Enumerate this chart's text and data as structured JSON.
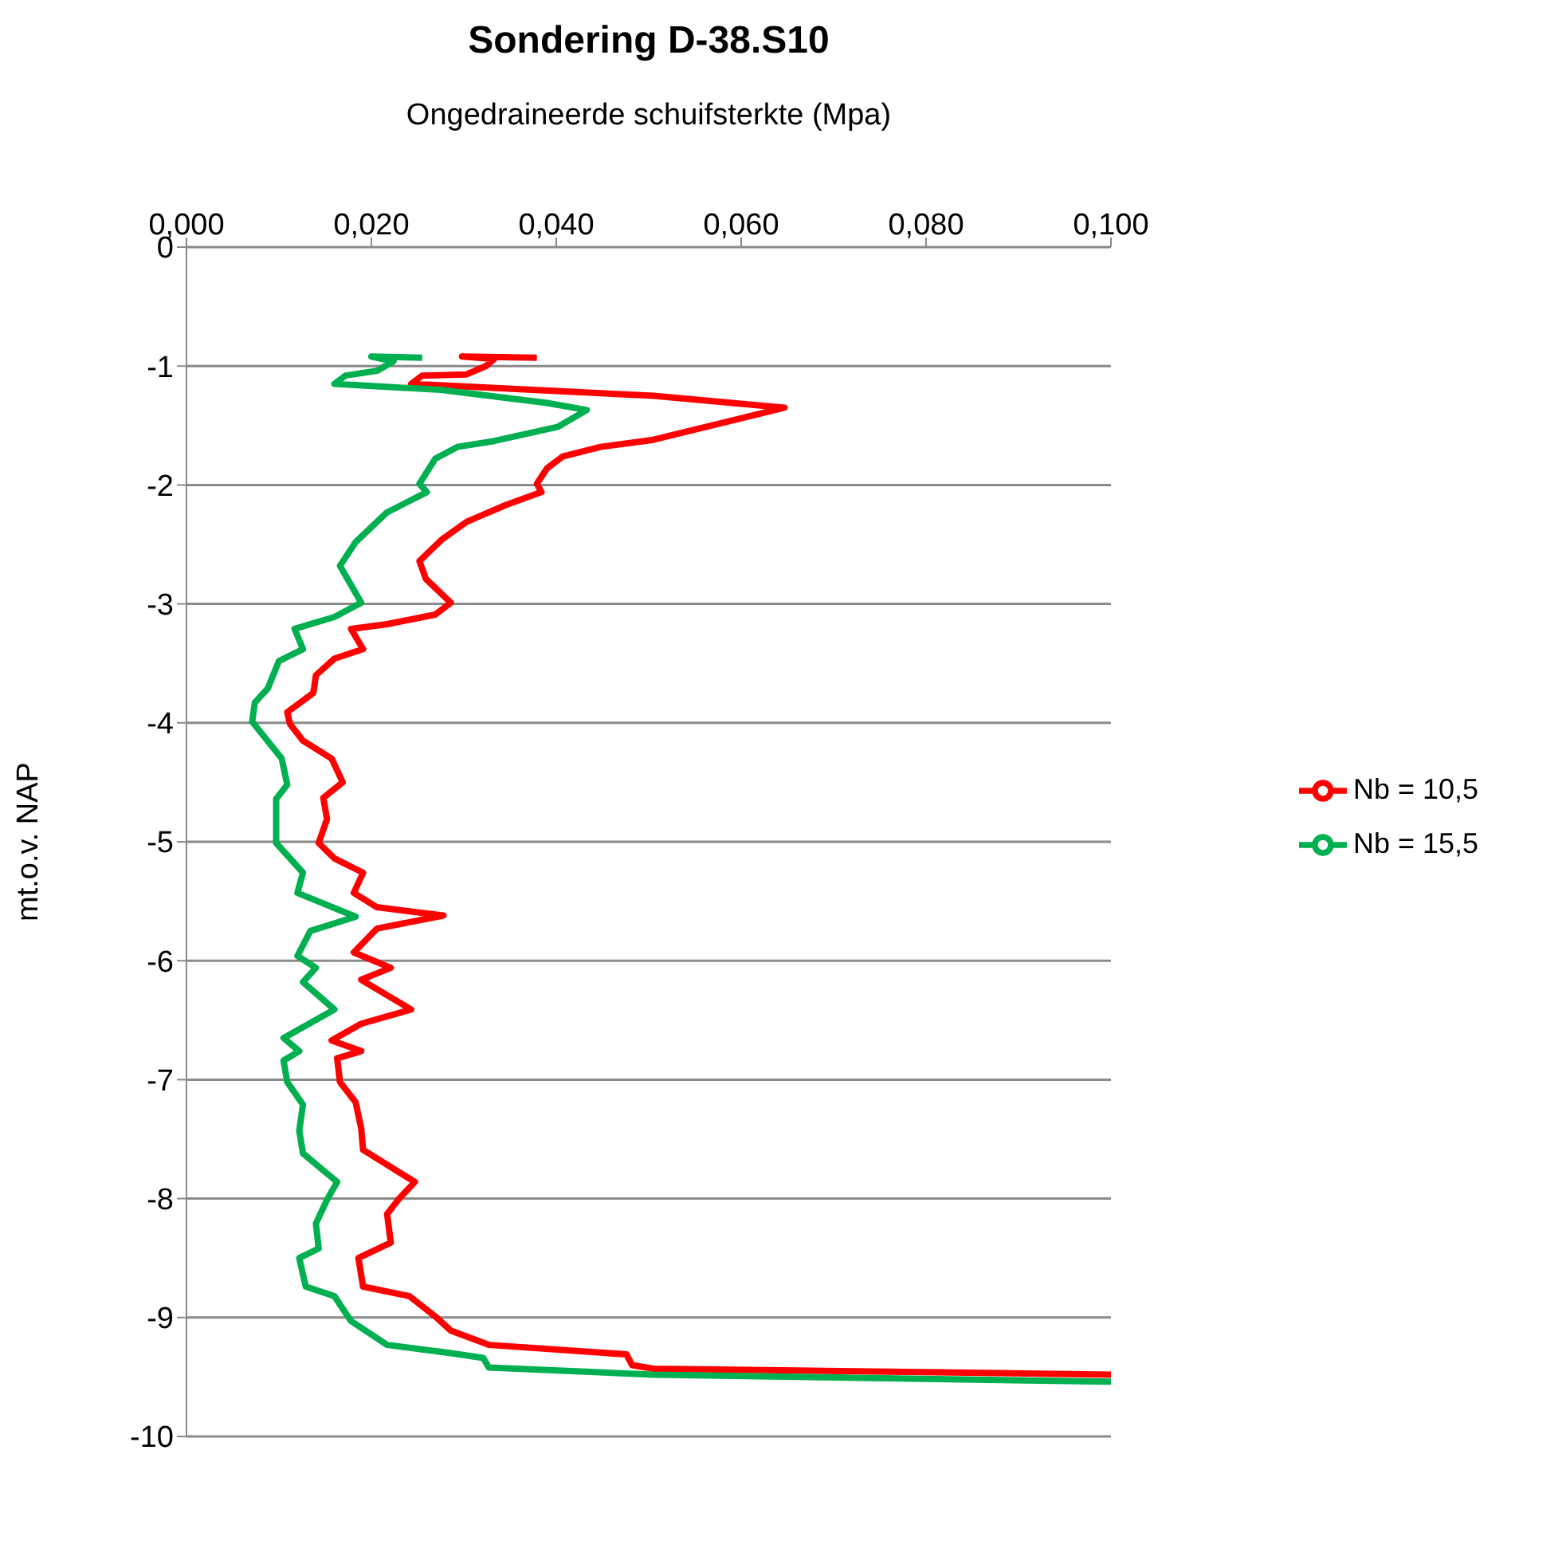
{
  "chart_data": {
    "type": "line",
    "title": "Sondering D-38.S10",
    "xlabel": "Ongedraineerde schuifsterkte (Mpa)",
    "ylabel": "mt.o.v. NAP",
    "xlim": [
      0,
      0.1
    ],
    "xticks": [
      {
        "value": 0,
        "label": "0,000"
      },
      {
        "value": 0.02,
        "label": "0,020"
      },
      {
        "value": 0.04,
        "label": "0,040"
      },
      {
        "value": 0.06,
        "label": "0,060"
      },
      {
        "value": 0.08,
        "label": "0,080"
      },
      {
        "value": 0.1,
        "label": "0,100"
      }
    ],
    "ylim": [
      -10,
      0
    ],
    "yticks": [
      0,
      -1,
      -2,
      -3,
      -4,
      -5,
      -6,
      -7,
      -8,
      -9,
      -10
    ],
    "grid": "y",
    "legend": "right",
    "marker": "none",
    "line_style": "solid",
    "series": [
      {
        "name": "Nb = 10,5",
        "color": "#ff0000",
        "x": [
          0.0379,
          0.0298,
          0.0333,
          0.0324,
          0.0303,
          0.0255,
          0.0243,
          0.0505,
          0.0647,
          0.0505,
          0.0448,
          0.0407,
          0.039,
          0.0379,
          0.0384,
          0.0345,
          0.0303,
          0.0276,
          0.0252,
          0.0259,
          0.0286,
          0.0269,
          0.0217,
          0.0178,
          0.0191,
          0.016,
          0.014,
          0.0138,
          0.0137,
          0.0109,
          0.0112,
          0.0126,
          0.0157,
          0.0169,
          0.0148,
          0.0152,
          0.0143,
          0.016,
          0.0191,
          0.0181,
          0.0206,
          0.0278,
          0.0206,
          0.0181,
          0.0221,
          0.0189,
          0.0243,
          0.0189,
          0.0157,
          0.0189,
          0.0163,
          0.0166,
          0.0183,
          0.0189,
          0.0191,
          0.0247,
          0.0229,
          0.0217,
          0.0221,
          0.0186,
          0.0191,
          0.0241,
          0.0269,
          0.0286,
          0.0327,
          0.0476,
          0.0482,
          0.0505,
          0.1
        ],
        "values": [
          -0.93,
          -0.92,
          -0.94,
          -1.0,
          -1.07,
          -1.08,
          -1.15,
          -1.25,
          -1.35,
          -1.62,
          -1.68,
          -1.76,
          -1.86,
          -1.99,
          -2.06,
          -2.17,
          -2.31,
          -2.46,
          -2.64,
          -2.79,
          -2.99,
          -3.09,
          -3.17,
          -3.21,
          -3.38,
          -3.46,
          -3.6,
          -3.71,
          -3.75,
          -3.91,
          -4.01,
          -4.15,
          -4.3,
          -4.5,
          -4.63,
          -4.81,
          -5.01,
          -5.14,
          -5.26,
          -5.43,
          -5.55,
          -5.62,
          -5.73,
          -5.93,
          -6.06,
          -6.16,
          -6.41,
          -6.53,
          -6.67,
          -6.76,
          -6.82,
          -7.02,
          -7.19,
          -7.41,
          -7.59,
          -7.86,
          -8.01,
          -8.13,
          -8.37,
          -8.5,
          -8.74,
          -8.82,
          -8.99,
          -9.11,
          -9.23,
          -9.31,
          -9.4,
          -9.43,
          -9.48
        ]
      },
      {
        "name": "Nb = 15,5",
        "color": "#00b050",
        "x": [
          0.0255,
          0.02,
          0.0224,
          0.0206,
          0.0172,
          0.016,
          0.0275,
          0.039,
          0.0433,
          0.0402,
          0.0333,
          0.0293,
          0.0269,
          0.0252,
          0.026,
          0.0217,
          0.0183,
          0.0166,
          0.0189,
          0.016,
          0.0117,
          0.0126,
          0.01,
          0.0088,
          0.0074,
          0.0071,
          0.0103,
          0.0109,
          0.0097,
          0.0097,
          0.0126,
          0.012,
          0.0183,
          0.0134,
          0.012,
          0.014,
          0.0126,
          0.016,
          0.0105,
          0.0122,
          0.0105,
          0.0109,
          0.0126,
          0.0122,
          0.0126,
          0.0163,
          0.0152,
          0.014,
          0.0143,
          0.0122,
          0.0129,
          0.016,
          0.0178,
          0.0217,
          0.0286,
          0.0321,
          0.0327,
          0.0505,
          0.1
        ],
        "values": [
          -0.93,
          -0.92,
          -0.96,
          -1.04,
          -1.08,
          -1.15,
          -1.2,
          -1.31,
          -1.37,
          -1.51,
          -1.63,
          -1.68,
          -1.78,
          -1.99,
          -2.06,
          -2.23,
          -2.48,
          -2.68,
          -2.99,
          -3.11,
          -3.21,
          -3.38,
          -3.48,
          -3.71,
          -3.83,
          -3.99,
          -4.3,
          -4.52,
          -4.64,
          -5.01,
          -5.26,
          -5.43,
          -5.63,
          -5.75,
          -5.96,
          -6.06,
          -6.18,
          -6.41,
          -6.65,
          -6.76,
          -6.84,
          -7.02,
          -7.21,
          -7.43,
          -7.62,
          -7.86,
          -8.01,
          -8.21,
          -8.42,
          -8.5,
          -8.74,
          -8.82,
          -9.03,
          -9.23,
          -9.3,
          -9.34,
          -9.42,
          -9.48,
          -9.54
        ]
      }
    ]
  }
}
